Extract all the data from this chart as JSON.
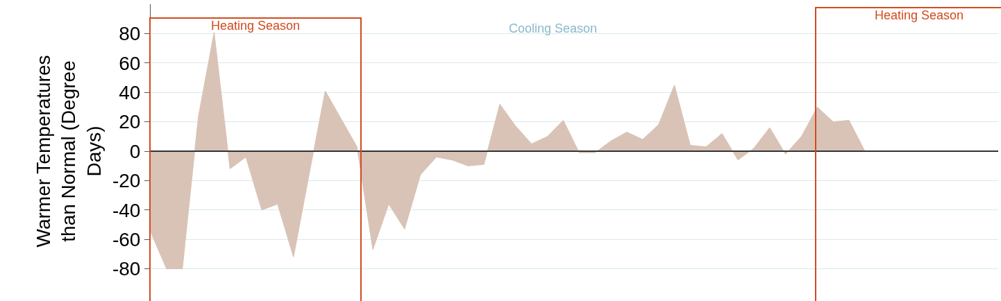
{
  "chart_data": {
    "type": "area",
    "ylabel": "Warmer Temperatures than Normal (Degree Days)",
    "categories": [
      null,
      null,
      null,
      null,
      null,
      null,
      null,
      null,
      null,
      null,
      null,
      null,
      null,
      null,
      null,
      null,
      null,
      null,
      null,
      null,
      null,
      null,
      null,
      null,
      null,
      null,
      null,
      null,
      null,
      null,
      null,
      null,
      null,
      null,
      null,
      null,
      null,
      null,
      null,
      null,
      null,
      null,
      null,
      null,
      null,
      null,
      null,
      null,
      null,
      null,
      null,
      null,
      null,
      null
    ],
    "series": [
      {
        "color": "#d9c3b6",
        "values": [
          -55,
          -80,
          -80,
          23,
          81,
          -12,
          -4,
          -40,
          -36,
          -72,
          -15,
          41,
          22,
          3,
          -67,
          -36,
          -53,
          -16,
          -4,
          -6,
          -10,
          -9,
          32,
          17,
          5,
          10,
          21,
          -1,
          -1,
          7,
          13,
          8,
          18,
          45,
          4,
          3,
          12,
          -6,
          2,
          16,
          -2,
          10,
          30,
          20,
          21,
          0,
          null,
          null,
          null,
          null,
          null,
          null,
          null,
          null
        ]
      }
    ],
    "ylim": [
      -100,
      100
    ],
    "yticks": [
      -80,
      -60,
      -40,
      -20,
      0,
      20,
      40,
      60,
      80
    ],
    "tick_labels": "y",
    "grid": "y",
    "annotations": [
      "Heating Season",
      "Cooling Season",
      "Heating Season"
    ]
  }
}
